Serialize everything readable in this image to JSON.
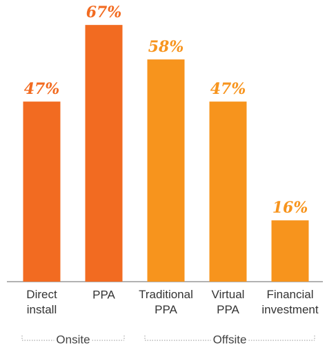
{
  "chart_data": {
    "type": "bar",
    "categories": [
      "Direct install",
      "PPA",
      "Traditional PPA",
      "Virtual PPA",
      "Financial investment"
    ],
    "values": [
      47,
      67,
      58,
      47,
      16
    ],
    "value_labels": [
      "47%",
      "67%",
      "58%",
      "47%",
      "16%"
    ],
    "colors": [
      "#f26b21",
      "#f26b21",
      "#f7941d",
      "#f7941d",
      "#f7941d"
    ],
    "groups": [
      {
        "name": "Onsite"
      },
      {
        "name": "Offsite"
      }
    ]
  }
}
